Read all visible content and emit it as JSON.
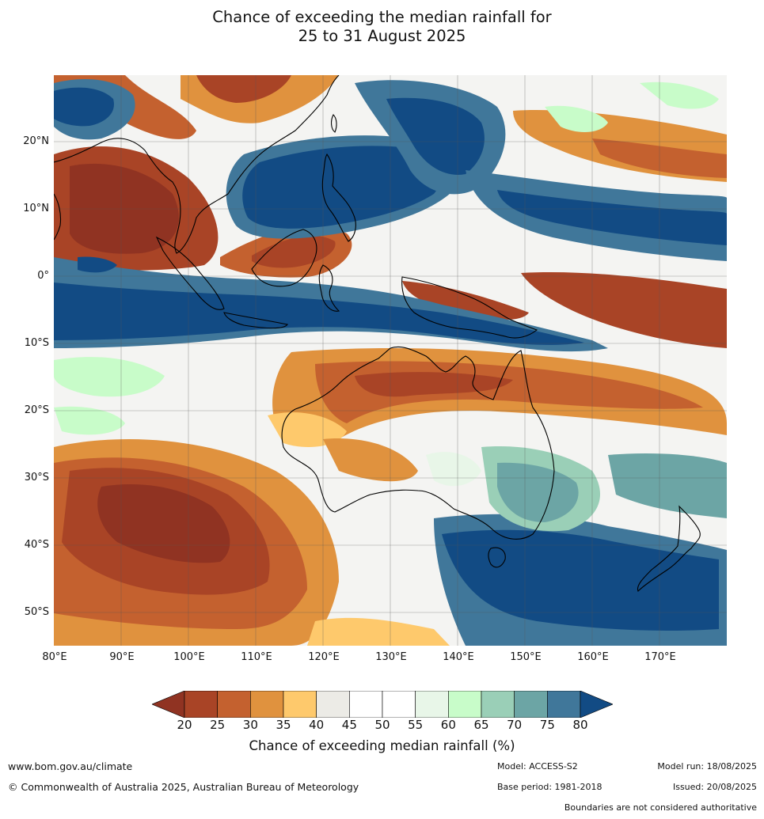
{
  "title_line1": "Chance of exceeding the median rainfall for",
  "title_line2": "25 to 31 August 2025",
  "lat_ticks": [
    "20°N",
    "10°N",
    "0°",
    "10°S",
    "20°S",
    "30°S",
    "40°S",
    "50°S"
  ],
  "lon_ticks": [
    "80°E",
    "90°E",
    "100°E",
    "110°E",
    "120°E",
    "130°E",
    "140°E",
    "150°E",
    "160°E",
    "170°E"
  ],
  "map_extent": {
    "lon_min": 80,
    "lon_max": 180,
    "lat_min": -55,
    "lat_max": 30
  },
  "colorbar": {
    "label": "Chance of exceeding median rainfall (%)",
    "ticks": [
      "20",
      "25",
      "30",
      "35",
      "40",
      "45",
      "50",
      "55",
      "60",
      "65",
      "70",
      "75",
      "80"
    ],
    "colors": [
      "#a94426",
      "#c4612f",
      "#e0923e",
      "#fec96c",
      "#ecebe6",
      "#ffffff",
      "#ffffff",
      "#e8f6e8",
      "#c8fcc9",
      "#9acfb7",
      "#6ca5a5",
      "#40779a"
    ],
    "under_color": "#903322",
    "over_color": "#124b84"
  },
  "footer": {
    "url": "www.bom.gov.au/climate",
    "copyright": "© Commonwealth of Australia 2025, Australian Bureau of Meteorology",
    "model": "Model: ACCESS-S2",
    "model_run": "Model run: 18/08/2025",
    "base_period": "Base period: 1981-2018",
    "issued": "Issued: 20/08/2025",
    "disclaimer": "Boundaries are not considered authoritative"
  }
}
